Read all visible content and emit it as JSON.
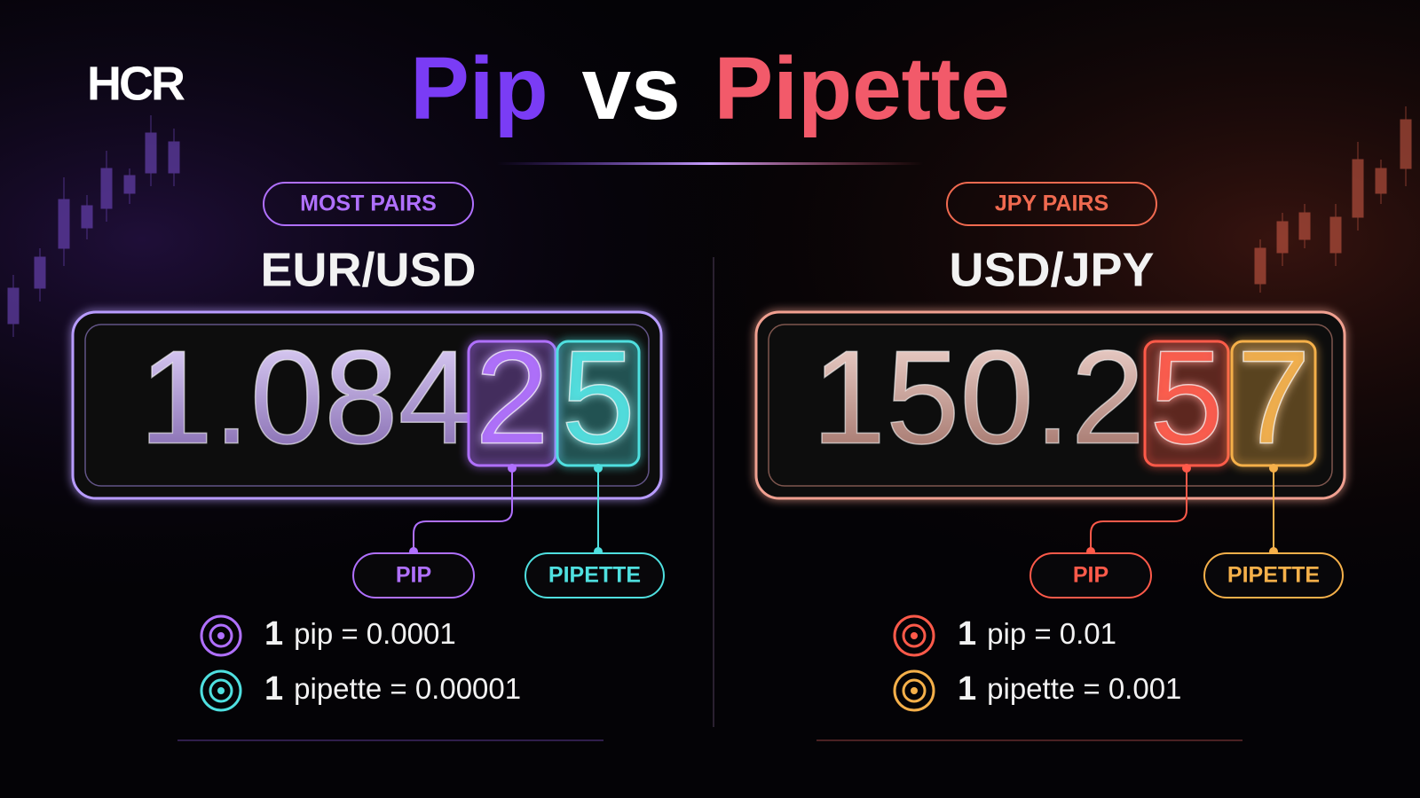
{
  "logo": "HCR",
  "title": {
    "part1": "Pip",
    "part2": "vs",
    "part3": "Pipette"
  },
  "panels": [
    {
      "badge": "MOST PAIRS",
      "pair": "EUR/USD",
      "rate_prefix": "1.084",
      "pip_digit": "2",
      "pipette_digit": "5",
      "pip_label": "PIP",
      "pipette_label": "PIPETTE",
      "definitions": [
        {
          "count": "1",
          "text": "pip = 0.0001"
        },
        {
          "count": "1",
          "text": "pipette = 0.00001"
        }
      ]
    },
    {
      "badge": "JPY PAIRS",
      "pair": "USD/JPY",
      "rate_prefix": "150.2",
      "pip_digit": "5",
      "pipette_digit": "7",
      "pip_label": "PIP",
      "pipette_label": "PIPETTE",
      "definitions": [
        {
          "count": "1",
          "text": "pip = 0.01"
        },
        {
          "count": "1",
          "text": "pipette = 0.001"
        }
      ]
    }
  ]
}
